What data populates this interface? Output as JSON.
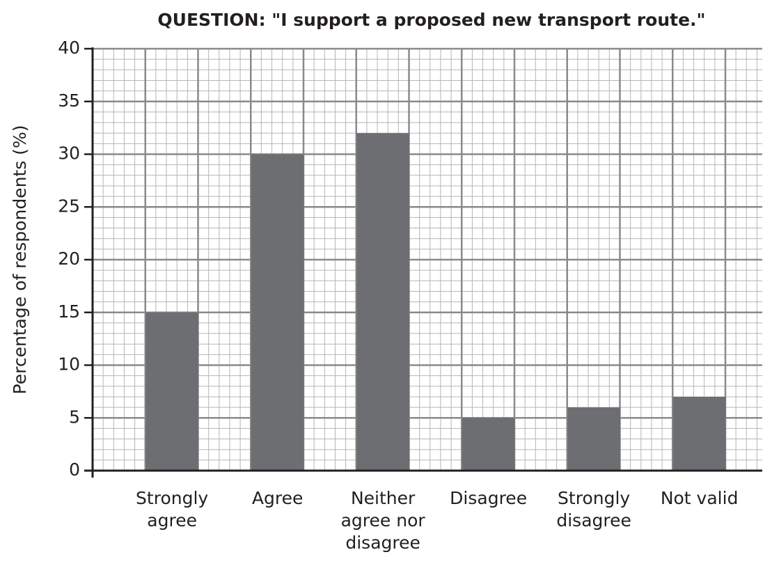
{
  "chart_data": {
    "type": "bar",
    "title": "QUESTION: \"I support a proposed new transport route.\"",
    "y_label": "Percentage of respondents (%)",
    "categories": [
      "Strongly agree",
      "Agree",
      "Neither agree nor disagree",
      "Disagree",
      "Strongly disagree",
      "Not valid"
    ],
    "values": [
      15,
      30,
      32,
      5,
      6,
      7
    ],
    "color": "#6d6e71",
    "ylim": [
      0,
      40
    ],
    "yticks": [
      0,
      5,
      10,
      15,
      20,
      25,
      30,
      35,
      40
    ],
    "grid": true
  }
}
